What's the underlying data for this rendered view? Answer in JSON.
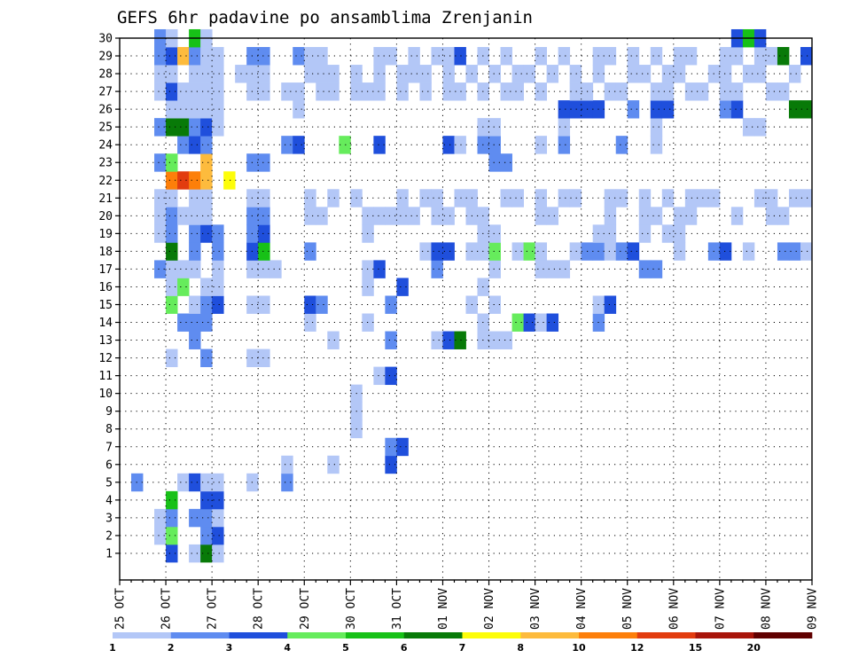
{
  "chart_data": {
    "type": "heatmap",
    "title": "GEFS 6hr padavine po ansamblima Zrenjanin",
    "x_labels": [
      "25 OCT",
      "26 OCT",
      "27 OCT",
      "28 OCT",
      "29 OCT",
      "30 OCT",
      "31 OCT",
      "01 NOV",
      "02 NOV",
      "03 NOV",
      "04 NOV",
      "05 NOV",
      "06 NOV",
      "07 NOV",
      "08 NOV",
      "09 NOV"
    ],
    "x_unit": "6-hour step (4 per day), starting 25 OCT 00 UTC",
    "xlim_steps": [
      0,
      60
    ],
    "y_labels": [
      "1",
      "2",
      "3",
      "4",
      "5",
      "6",
      "7",
      "8",
      "9",
      "10",
      "11",
      "12",
      "13",
      "14",
      "15",
      "16",
      "17",
      "18",
      "19",
      "20",
      "21",
      "22",
      "23",
      "24",
      "25",
      "26",
      "27",
      "28",
      "29",
      "30"
    ],
    "ylim": [
      0,
      30
    ],
    "grid": true,
    "legend": {
      "placement": "bottom",
      "levels": [
        "1",
        "2",
        "3",
        "4",
        "5",
        "6",
        "7",
        "8",
        "10",
        "12",
        "15",
        "20"
      ],
      "colors": [
        "#b3c7f7",
        "#5f8cf0",
        "#1f4fdc",
        "#66ec5c",
        "#17c117",
        "#087a08",
        "#fdfd0a",
        "#fdbb3d",
        "#fd7f0a",
        "#e23c0f",
        "#a8150a",
        "#600000"
      ]
    },
    "cells": [
      [
        4,
        0,
        3
      ],
      [
        6,
        0,
        1
      ],
      [
        7,
        0,
        6
      ],
      [
        8,
        0,
        1
      ],
      [
        3,
        1,
        1
      ],
      [
        4,
        1,
        4
      ],
      [
        7,
        1,
        2
      ],
      [
        8,
        1,
        3
      ],
      [
        3,
        2,
        1
      ],
      [
        4,
        2,
        2
      ],
      [
        6,
        2,
        2
      ],
      [
        7,
        2,
        2
      ],
      [
        8,
        2,
        1
      ],
      [
        4,
        3,
        5
      ],
      [
        7,
        3,
        3
      ],
      [
        8,
        3,
        3
      ],
      [
        1,
        4,
        2
      ],
      [
        5,
        4,
        1
      ],
      [
        6,
        4,
        3
      ],
      [
        7,
        4,
        1
      ],
      [
        8,
        4,
        1
      ],
      [
        11,
        4,
        1
      ],
      [
        14,
        4,
        2
      ],
      [
        14,
        5,
        1
      ],
      [
        18,
        5,
        1
      ],
      [
        23,
        5,
        3
      ],
      [
        23,
        6,
        2
      ],
      [
        24,
        6,
        3
      ],
      [
        20,
        7,
        1
      ],
      [
        20,
        8,
        1
      ],
      [
        20,
        9,
        1
      ],
      [
        22,
        10,
        1
      ],
      [
        23,
        10,
        3
      ],
      [
        4,
        11,
        1
      ],
      [
        7,
        11,
        2
      ],
      [
        11,
        11,
        1
      ],
      [
        12,
        11,
        1
      ],
      [
        6,
        12,
        2
      ],
      [
        18,
        12,
        1
      ],
      [
        23,
        12,
        2
      ],
      [
        27,
        12,
        1
      ],
      [
        28,
        12,
        3
      ],
      [
        29,
        12,
        6
      ],
      [
        31,
        12,
        1
      ],
      [
        32,
        12,
        1
      ],
      [
        33,
        12,
        1
      ],
      [
        5,
        13,
        2
      ],
      [
        6,
        13,
        2
      ],
      [
        7,
        13,
        2
      ],
      [
        16,
        13,
        1
      ],
      [
        21,
        13,
        1
      ],
      [
        31,
        13,
        1
      ],
      [
        34,
        13,
        4
      ],
      [
        35,
        13,
        3
      ],
      [
        36,
        13,
        1
      ],
      [
        37,
        13,
        3
      ],
      [
        41,
        13,
        2
      ],
      [
        4,
        14,
        4
      ],
      [
        6,
        14,
        1
      ],
      [
        7,
        14,
        2
      ],
      [
        8,
        14,
        3
      ],
      [
        11,
        14,
        1
      ],
      [
        12,
        14,
        1
      ],
      [
        16,
        14,
        3
      ],
      [
        17,
        14,
        2
      ],
      [
        23,
        14,
        2
      ],
      [
        30,
        14,
        1
      ],
      [
        32,
        14,
        1
      ],
      [
        41,
        14,
        1
      ],
      [
        42,
        14,
        3
      ],
      [
        4,
        15,
        1
      ],
      [
        5,
        15,
        4
      ],
      [
        7,
        15,
        1
      ],
      [
        8,
        15,
        1
      ],
      [
        21,
        15,
        1
      ],
      [
        24,
        15,
        3
      ],
      [
        31,
        15,
        1
      ],
      [
        3,
        16,
        2
      ],
      [
        4,
        16,
        1
      ],
      [
        5,
        16,
        1
      ],
      [
        6,
        16,
        1
      ],
      [
        8,
        16,
        1
      ],
      [
        11,
        16,
        1
      ],
      [
        12,
        16,
        1
      ],
      [
        13,
        16,
        1
      ],
      [
        21,
        16,
        1
      ],
      [
        22,
        16,
        3
      ],
      [
        27,
        16,
        2
      ],
      [
        32,
        16,
        1
      ],
      [
        36,
        16,
        1
      ],
      [
        37,
        16,
        1
      ],
      [
        38,
        16,
        1
      ],
      [
        45,
        16,
        2
      ],
      [
        46,
        16,
        2
      ],
      [
        4,
        17,
        6
      ],
      [
        6,
        17,
        2
      ],
      [
        8,
        17,
        2
      ],
      [
        11,
        17,
        3
      ],
      [
        12,
        17,
        5
      ],
      [
        16,
        17,
        2
      ],
      [
        26,
        17,
        1
      ],
      [
        27,
        17,
        3
      ],
      [
        28,
        17,
        3
      ],
      [
        30,
        17,
        1
      ],
      [
        31,
        17,
        1
      ],
      [
        32,
        17,
        4
      ],
      [
        34,
        17,
        1
      ],
      [
        35,
        17,
        4
      ],
      [
        36,
        17,
        1
      ],
      [
        39,
        17,
        1
      ],
      [
        40,
        17,
        2
      ],
      [
        41,
        17,
        2
      ],
      [
        42,
        17,
        1
      ],
      [
        43,
        17,
        2
      ],
      [
        44,
        17,
        3
      ],
      [
        48,
        17,
        1
      ],
      [
        51,
        17,
        2
      ],
      [
        52,
        17,
        3
      ],
      [
        54,
        17,
        1
      ],
      [
        57,
        17,
        2
      ],
      [
        58,
        17,
        2
      ],
      [
        59,
        17,
        1
      ],
      [
        3,
        18,
        1
      ],
      [
        4,
        18,
        2
      ],
      [
        6,
        18,
        2
      ],
      [
        7,
        18,
        3
      ],
      [
        8,
        18,
        2
      ],
      [
        11,
        18,
        2
      ],
      [
        12,
        18,
        3
      ],
      [
        21,
        18,
        1
      ],
      [
        31,
        18,
        1
      ],
      [
        32,
        18,
        1
      ],
      [
        41,
        18,
        1
      ],
      [
        42,
        18,
        1
      ],
      [
        45,
        18,
        1
      ],
      [
        47,
        18,
        1
      ],
      [
        48,
        18,
        1
      ],
      [
        3,
        19,
        1
      ],
      [
        4,
        19,
        2
      ],
      [
        5,
        19,
        1
      ],
      [
        6,
        19,
        1
      ],
      [
        7,
        19,
        1
      ],
      [
        11,
        19,
        2
      ],
      [
        12,
        19,
        2
      ],
      [
        16,
        19,
        1
      ],
      [
        17,
        19,
        1
      ],
      [
        21,
        19,
        1
      ],
      [
        22,
        19,
        1
      ],
      [
        23,
        19,
        1
      ],
      [
        24,
        19,
        1
      ],
      [
        25,
        19,
        1
      ],
      [
        27,
        19,
        1
      ],
      [
        28,
        19,
        1
      ],
      [
        30,
        19,
        1
      ],
      [
        31,
        19,
        1
      ],
      [
        36,
        19,
        1
      ],
      [
        37,
        19,
        1
      ],
      [
        42,
        19,
        1
      ],
      [
        45,
        19,
        1
      ],
      [
        46,
        19,
        1
      ],
      [
        48,
        19,
        1
      ],
      [
        49,
        19,
        1
      ],
      [
        53,
        19,
        1
      ],
      [
        56,
        19,
        1
      ],
      [
        57,
        19,
        1
      ],
      [
        3,
        20,
        1
      ],
      [
        4,
        20,
        1
      ],
      [
        6,
        20,
        1
      ],
      [
        7,
        20,
        1
      ],
      [
        11,
        20,
        1
      ],
      [
        12,
        20,
        1
      ],
      [
        16,
        20,
        1
      ],
      [
        18,
        20,
        1
      ],
      [
        20,
        20,
        1
      ],
      [
        24,
        20,
        1
      ],
      [
        26,
        20,
        1
      ],
      [
        27,
        20,
        1
      ],
      [
        29,
        20,
        1
      ],
      [
        30,
        20,
        1
      ],
      [
        33,
        20,
        1
      ],
      [
        34,
        20,
        1
      ],
      [
        36,
        20,
        1
      ],
      [
        38,
        20,
        1
      ],
      [
        39,
        20,
        1
      ],
      [
        42,
        20,
        1
      ],
      [
        43,
        20,
        1
      ],
      [
        45,
        20,
        1
      ],
      [
        47,
        20,
        1
      ],
      [
        49,
        20,
        1
      ],
      [
        50,
        20,
        1
      ],
      [
        51,
        20,
        1
      ],
      [
        55,
        20,
        1
      ],
      [
        56,
        20,
        1
      ],
      [
        58,
        20,
        1
      ],
      [
        59,
        20,
        1
      ],
      [
        4,
        21,
        9
      ],
      [
        5,
        21,
        10
      ],
      [
        6,
        21,
        9
      ],
      [
        7,
        21,
        8
      ],
      [
        9,
        21,
        7
      ],
      [
        3,
        22,
        2
      ],
      [
        4,
        22,
        4
      ],
      [
        7,
        22,
        8
      ],
      [
        11,
        22,
        2
      ],
      [
        12,
        22,
        2
      ],
      [
        32,
        22,
        2
      ],
      [
        33,
        22,
        2
      ],
      [
        5,
        23,
        2
      ],
      [
        6,
        23,
        3
      ],
      [
        7,
        23,
        2
      ],
      [
        14,
        23,
        2
      ],
      [
        15,
        23,
        3
      ],
      [
        19,
        23,
        4
      ],
      [
        22,
        23,
        3
      ],
      [
        28,
        23,
        3
      ],
      [
        29,
        23,
        1
      ],
      [
        31,
        23,
        2
      ],
      [
        32,
        23,
        2
      ],
      [
        36,
        23,
        1
      ],
      [
        38,
        23,
        2
      ],
      [
        43,
        23,
        2
      ],
      [
        46,
        23,
        1
      ],
      [
        3,
        24,
        2
      ],
      [
        4,
        24,
        6
      ],
      [
        5,
        24,
        6
      ],
      [
        6,
        24,
        2
      ],
      [
        7,
        24,
        3
      ],
      [
        8,
        24,
        1
      ],
      [
        31,
        24,
        1
      ],
      [
        32,
        24,
        1
      ],
      [
        38,
        24,
        1
      ],
      [
        46,
        24,
        1
      ],
      [
        54,
        24,
        1
      ],
      [
        55,
        24,
        1
      ],
      [
        4,
        25,
        1
      ],
      [
        5,
        25,
        1
      ],
      [
        6,
        25,
        1
      ],
      [
        7,
        25,
        1
      ],
      [
        8,
        25,
        1
      ],
      [
        15,
        25,
        1
      ],
      [
        38,
        25,
        3
      ],
      [
        39,
        25,
        3
      ],
      [
        40,
        25,
        3
      ],
      [
        41,
        25,
        3
      ],
      [
        44,
        25,
        2
      ],
      [
        46,
        25,
        3
      ],
      [
        47,
        25,
        3
      ],
      [
        52,
        25,
        2
      ],
      [
        53,
        25,
        3
      ],
      [
        58,
        25,
        6
      ],
      [
        59,
        25,
        6
      ],
      [
        3,
        26,
        1
      ],
      [
        4,
        26,
        3
      ],
      [
        5,
        26,
        1
      ],
      [
        6,
        26,
        1
      ],
      [
        7,
        26,
        1
      ],
      [
        8,
        26,
        1
      ],
      [
        11,
        26,
        1
      ],
      [
        12,
        26,
        1
      ],
      [
        14,
        26,
        1
      ],
      [
        15,
        26,
        1
      ],
      [
        17,
        26,
        1
      ],
      [
        18,
        26,
        1
      ],
      [
        20,
        26,
        1
      ],
      [
        21,
        26,
        1
      ],
      [
        22,
        26,
        1
      ],
      [
        24,
        26,
        1
      ],
      [
        26,
        26,
        1
      ],
      [
        28,
        26,
        1
      ],
      [
        29,
        26,
        1
      ],
      [
        31,
        26,
        1
      ],
      [
        33,
        26,
        1
      ],
      [
        34,
        26,
        1
      ],
      [
        36,
        26,
        1
      ],
      [
        39,
        26,
        1
      ],
      [
        40,
        26,
        1
      ],
      [
        42,
        26,
        1
      ],
      [
        43,
        26,
        1
      ],
      [
        46,
        26,
        1
      ],
      [
        47,
        26,
        1
      ],
      [
        49,
        26,
        1
      ],
      [
        50,
        26,
        1
      ],
      [
        52,
        26,
        1
      ],
      [
        53,
        26,
        1
      ],
      [
        56,
        26,
        1
      ],
      [
        57,
        26,
        1
      ],
      [
        3,
        27,
        1
      ],
      [
        4,
        27,
        1
      ],
      [
        6,
        27,
        1
      ],
      [
        7,
        27,
        1
      ],
      [
        8,
        27,
        1
      ],
      [
        10,
        27,
        1
      ],
      [
        11,
        27,
        1
      ],
      [
        12,
        27,
        1
      ],
      [
        16,
        27,
        1
      ],
      [
        17,
        27,
        1
      ],
      [
        18,
        27,
        1
      ],
      [
        20,
        27,
        1
      ],
      [
        22,
        27,
        1
      ],
      [
        24,
        27,
        1
      ],
      [
        25,
        27,
        1
      ],
      [
        26,
        27,
        1
      ],
      [
        28,
        27,
        1
      ],
      [
        30,
        27,
        1
      ],
      [
        32,
        27,
        1
      ],
      [
        34,
        27,
        1
      ],
      [
        35,
        27,
        1
      ],
      [
        37,
        27,
        1
      ],
      [
        39,
        27,
        1
      ],
      [
        41,
        27,
        1
      ],
      [
        44,
        27,
        1
      ],
      [
        45,
        27,
        1
      ],
      [
        47,
        27,
        1
      ],
      [
        48,
        27,
        1
      ],
      [
        51,
        27,
        1
      ],
      [
        52,
        27,
        1
      ],
      [
        54,
        27,
        1
      ],
      [
        55,
        27,
        1
      ],
      [
        58,
        27,
        1
      ],
      [
        3,
        28,
        2
      ],
      [
        4,
        28,
        3
      ],
      [
        5,
        28,
        8
      ],
      [
        6,
        28,
        2
      ],
      [
        7,
        28,
        1
      ],
      [
        8,
        28,
        1
      ],
      [
        11,
        28,
        2
      ],
      [
        12,
        28,
        2
      ],
      [
        15,
        28,
        2
      ],
      [
        16,
        28,
        1
      ],
      [
        17,
        28,
        1
      ],
      [
        22,
        28,
        1
      ],
      [
        23,
        28,
        1
      ],
      [
        25,
        28,
        1
      ],
      [
        27,
        28,
        1
      ],
      [
        28,
        28,
        1
      ],
      [
        29,
        28,
        3
      ],
      [
        31,
        28,
        1
      ],
      [
        33,
        28,
        1
      ],
      [
        36,
        28,
        1
      ],
      [
        38,
        28,
        1
      ],
      [
        41,
        28,
        1
      ],
      [
        42,
        28,
        1
      ],
      [
        44,
        28,
        1
      ],
      [
        46,
        28,
        1
      ],
      [
        48,
        28,
        1
      ],
      [
        49,
        28,
        1
      ],
      [
        52,
        28,
        1
      ],
      [
        53,
        28,
        1
      ],
      [
        55,
        28,
        1
      ],
      [
        56,
        28,
        1
      ],
      [
        57,
        28,
        6
      ],
      [
        59,
        28,
        3
      ],
      [
        3,
        29,
        2
      ],
      [
        4,
        29,
        1
      ],
      [
        6,
        29,
        5
      ],
      [
        7,
        29,
        1
      ],
      [
        53,
        29,
        3
      ],
      [
        54,
        29,
        5
      ],
      [
        55,
        29,
        3
      ]
    ]
  }
}
